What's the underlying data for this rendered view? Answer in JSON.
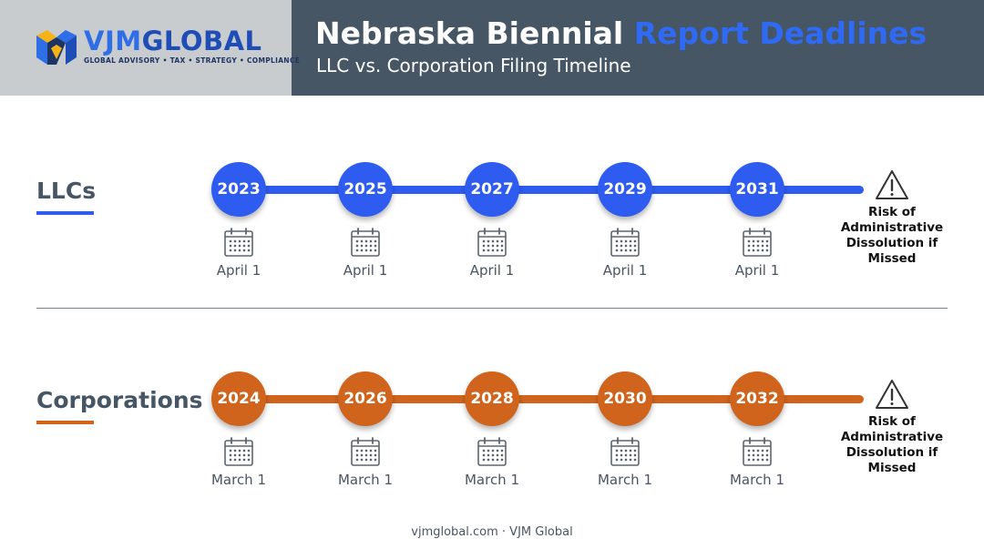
{
  "logo": {
    "part1": "VJM",
    "part2": "GLOBAL",
    "tagline": "GLOBAL ADVISORY • TAX • STRATEGY • COMPLIANCE"
  },
  "header": {
    "title_main": "Nebraska Biennial ",
    "title_accent": "Report Deadlines",
    "subtitle": "LLC vs. Corporation Filing Timeline"
  },
  "colors": {
    "llc": "#2f5cf0",
    "corp": "#d0641c",
    "header_bg": "#465665",
    "logo_bg": "#c9cccf"
  },
  "rows": [
    {
      "label": "LLCs",
      "deadlines": [
        {
          "year": "2023",
          "date": "April 1"
        },
        {
          "year": "2025",
          "date": "April 1"
        },
        {
          "year": "2027",
          "date": "April 1"
        },
        {
          "year": "2029",
          "date": "April 1"
        },
        {
          "year": "2031",
          "date": "April 1"
        }
      ],
      "risk": [
        "Risk of",
        "Administrative",
        "Dissolution if",
        "Missed"
      ]
    },
    {
      "label": "Corporations",
      "deadlines": [
        {
          "year": "2024",
          "date": "March 1"
        },
        {
          "year": "2026",
          "date": "March 1"
        },
        {
          "year": "2028",
          "date": "March 1"
        },
        {
          "year": "2030",
          "date": "March 1"
        },
        {
          "year": "2032",
          "date": "March 1"
        }
      ],
      "risk": [
        "Risk of",
        "Administrative",
        "Dissolution if",
        "Missed"
      ]
    }
  ],
  "icons": {
    "calendar": "calendar-icon",
    "warning": "warning-triangle-icon",
    "logo": "vjm-logo-mark-icon"
  },
  "footer": "vjmglobal.com · VJM Global"
}
